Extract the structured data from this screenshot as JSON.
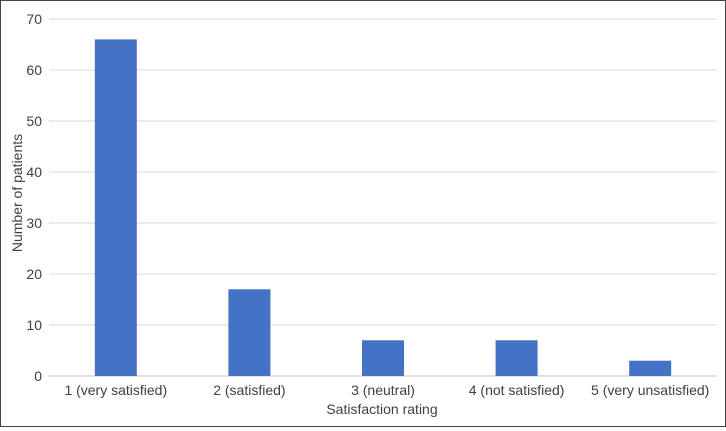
{
  "chart_data": {
    "type": "bar",
    "title": "",
    "xlabel": "Satisfaction rating",
    "ylabel": "Number of patients",
    "categories": [
      "1 (very satisfied)",
      "2 (satisfied)",
      "3 (neutral)",
      "4 (not satisfied)",
      "5 (very unsatisfied)"
    ],
    "values": [
      66,
      17,
      7,
      7,
      3
    ],
    "ylim": [
      0,
      70
    ],
    "yticks": [
      0,
      10,
      20,
      30,
      40,
      50,
      60,
      70
    ],
    "grid": true,
    "legend": "none",
    "colors": {
      "bar": "#4472c4",
      "grid": "#d9d9d9",
      "axis": "#bfbfbf",
      "text": "#404040"
    }
  }
}
